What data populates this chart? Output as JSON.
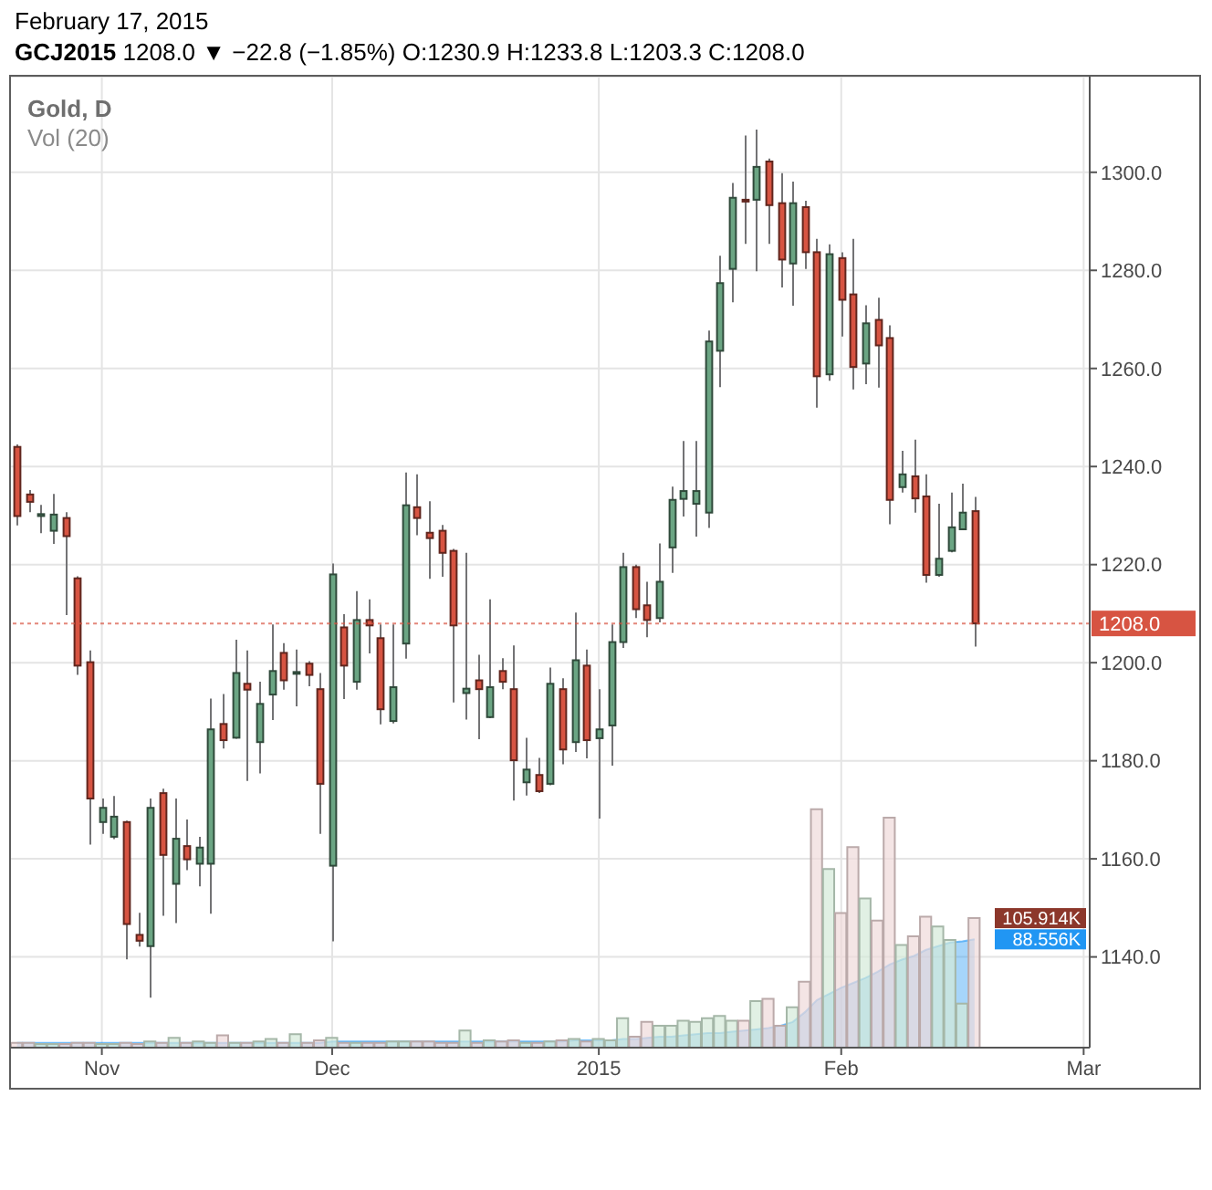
{
  "chart_data": {
    "type": "candlestick",
    "title": "February 17, 2015",
    "subtitle": "GCJ2015 1208.0 ▼ −22.8 (−1.85%) O:1230.9 H:1233.8 L:1203.3 C:1208.0",
    "annotations": [
      "Gold, D",
      "Vol (20)"
    ],
    "categories": [
      null,
      null,
      null,
      null,
      null,
      null,
      null,
      "Nov",
      null,
      null,
      null,
      null,
      null,
      null,
      null,
      null,
      null,
      null,
      null,
      null,
      null,
      null,
      null,
      null,
      null,
      null,
      "Dec",
      null,
      null,
      null,
      null,
      null,
      null,
      null,
      null,
      null,
      null,
      null,
      null,
      null,
      null,
      null,
      null,
      null,
      null,
      null,
      null,
      null,
      "2015",
      null,
      null,
      null,
      null,
      null,
      null,
      null,
      null,
      null,
      null,
      null,
      null,
      null,
      null,
      null,
      null,
      null,
      null,
      null,
      "Feb",
      null,
      null,
      null,
      null,
      null,
      null,
      null,
      null,
      null,
      null,
      null,
      null,
      null,
      null,
      null,
      null,
      null,
      null,
      null,
      "Mar"
    ],
    "series": [
      {
        "ohlc": [
          [
            1244.0,
            1244.5,
            1228.0,
            1229.9
          ],
          [
            1234.3,
            1235.2,
            1230.7,
            1232.8
          ],
          [
            1229.9,
            1232.2,
            1226.4,
            1230.3
          ],
          [
            1226.9,
            1234.4,
            1224.2,
            1230.2
          ],
          [
            1229.5,
            1230.7,
            1209.7,
            1225.8
          ],
          [
            1217.2,
            1217.6,
            1197.5,
            1199.4
          ],
          [
            1200.1,
            1202.5,
            1162.9,
            1172.3
          ],
          [
            1167.5,
            1172.3,
            1165.1,
            1170.4
          ],
          [
            1164.5,
            1172.8,
            1164.0,
            1168.6
          ],
          [
            1167.5,
            1167.8,
            1139.5,
            1146.7
          ],
          [
            1144.5,
            1149.0,
            1142.1,
            1143.3
          ],
          [
            1142.2,
            1172.3,
            1131.7,
            1170.4
          ],
          [
            1173.4,
            1174.3,
            1148.4,
            1160.8
          ],
          [
            1154.9,
            1172.3,
            1146.9,
            1164.1
          ],
          [
            1162.6,
            1168.0,
            1157.7,
            1159.9
          ],
          [
            1159.0,
            1164.5,
            1154.4,
            1162.3
          ],
          [
            1159.0,
            1192.7,
            1148.8,
            1186.4
          ],
          [
            1187.5,
            1193.6,
            1182.5,
            1184.2
          ],
          [
            1184.7,
            1204.7,
            1184.5,
            1197.9
          ],
          [
            1195.7,
            1202.5,
            1175.9,
            1194.5
          ],
          [
            1183.8,
            1196.1,
            1177.4,
            1191.6
          ],
          [
            1193.5,
            1207.8,
            1188.3,
            1198.3
          ],
          [
            1202.0,
            1204.0,
            1194.5,
            1196.4
          ],
          [
            1197.9,
            1202.7,
            1191.1,
            1198.1
          ],
          [
            1199.8,
            1200.3,
            1195.2,
            1197.5
          ],
          [
            1194.6,
            1197.9,
            1165.1,
            1175.3
          ],
          [
            1158.6,
            1220.2,
            1143.2,
            1218.0
          ],
          [
            1207.2,
            1209.9,
            1192.6,
            1199.4
          ],
          [
            1196.1,
            1214.6,
            1194.5,
            1208.7
          ],
          [
            1208.7,
            1212.9,
            1201.9,
            1207.6
          ],
          [
            1205.0,
            1207.8,
            1187.4,
            1190.5
          ],
          [
            1188.1,
            1207.8,
            1187.6,
            1195.0
          ],
          [
            1203.9,
            1238.8,
            1200.8,
            1232.1
          ],
          [
            1231.7,
            1238.4,
            1226.0,
            1229.5
          ],
          [
            1226.5,
            1232.9,
            1217.1,
            1225.4
          ],
          [
            1226.9,
            1228.1,
            1217.5,
            1222.4
          ],
          [
            1222.8,
            1223.2,
            1191.9,
            1207.6
          ],
          [
            1193.8,
            1222.4,
            1188.4,
            1194.7
          ],
          [
            1196.4,
            1201.6,
            1184.4,
            1194.6
          ],
          [
            1188.9,
            1212.9,
            1188.7,
            1195.0
          ],
          [
            1198.3,
            1200.9,
            1194.6,
            1196.1
          ],
          [
            1194.6,
            1203.5,
            1171.9,
            1180.1
          ],
          [
            1175.6,
            1184.7,
            1172.9,
            1178.2
          ],
          [
            1177.1,
            1180.6,
            1173.4,
            1173.8
          ],
          [
            1175.3,
            1199.0,
            1175.0,
            1195.7
          ],
          [
            1194.6,
            1196.8,
            1179.3,
            1182.3
          ],
          [
            1183.8,
            1210.2,
            1181.8,
            1200.5
          ],
          [
            1199.4,
            1202.7,
            1180.5,
            1184.2
          ],
          [
            1184.6,
            1194.6,
            1168.2,
            1186.4
          ],
          [
            1187.2,
            1207.8,
            1179.0,
            1204.2
          ],
          [
            1204.2,
            1222.4,
            1203.0,
            1219.5
          ],
          [
            1219.5,
            1220.0,
            1209.1,
            1210.9
          ],
          [
            1211.7,
            1216.5,
            1205.2,
            1208.7
          ],
          [
            1209.1,
            1224.3,
            1208.2,
            1216.5
          ],
          [
            1223.5,
            1235.9,
            1218.3,
            1233.2
          ],
          [
            1233.4,
            1245.2,
            1229.8,
            1235.0
          ],
          [
            1232.4,
            1245.2,
            1225.7,
            1235.0
          ],
          [
            1230.6,
            1267.7,
            1227.5,
            1265.5
          ],
          [
            1263.6,
            1283.0,
            1256.2,
            1277.4
          ],
          [
            1280.3,
            1297.8,
            1273.5,
            1294.8
          ],
          [
            1294.4,
            1307.5,
            1285.4,
            1294.2
          ],
          [
            1294.4,
            1308.7,
            1279.8,
            1301.1
          ],
          [
            1302.2,
            1302.8,
            1285.4,
            1293.3
          ],
          [
            1293.7,
            1299.8,
            1276.5,
            1282.2
          ],
          [
            1281.4,
            1298.1,
            1272.8,
            1293.7
          ],
          [
            1292.9,
            1294.2,
            1280.3,
            1283.7
          ],
          [
            1283.7,
            1286.4,
            1252.0,
            1258.4
          ],
          [
            1258.8,
            1285.3,
            1257.5,
            1283.3
          ],
          [
            1282.5,
            1283.7,
            1266.5,
            1274.0
          ],
          [
            1275.1,
            1286.4,
            1255.7,
            1260.3
          ],
          [
            1261.0,
            1272.9,
            1256.8,
            1269.2
          ],
          [
            1269.9,
            1274.4,
            1256.1,
            1264.7
          ],
          [
            1266.2,
            1268.8,
            1228.2,
            1233.2
          ],
          [
            1235.8,
            1243.2,
            1234.7,
            1238.4
          ],
          [
            1238.0,
            1245.5,
            1230.6,
            1233.5
          ],
          [
            1233.9,
            1238.4,
            1216.3,
            1217.9
          ],
          [
            1217.9,
            1232.4,
            1217.5,
            1221.2
          ],
          [
            1222.8,
            1234.7,
            1222.5,
            1227.6
          ],
          [
            1227.2,
            1236.5,
            1227.0,
            1230.6
          ],
          [
            1230.9,
            1233.8,
            1203.3,
            1208.0
          ],
          null,
          null,
          null,
          null,
          null,
          null,
          null,
          null,
          null
        ],
        "colors": [
          "#d75442",
          "#d75442",
          "#6ba583",
          "#6ba583",
          "#d75442",
          "#d75442",
          "#d75442",
          "#6ba583",
          "#6ba583",
          "#d75442",
          "#d75442",
          "#6ba583",
          "#d75442",
          "#6ba583",
          "#d75442",
          "#6ba583",
          "#6ba583",
          "#d75442",
          "#6ba583",
          "#d75442",
          "#6ba583",
          "#6ba583",
          "#d75442",
          "#6ba583",
          "#d75442",
          "#d75442",
          "#6ba583",
          "#d75442",
          "#6ba583",
          "#d75442",
          "#d75442",
          "#6ba583",
          "#6ba583",
          "#d75442",
          "#d75442",
          "#d75442",
          "#d75442",
          "#6ba583",
          "#d75442",
          "#6ba583",
          "#d75442",
          "#d75442",
          "#6ba583",
          "#d75442",
          "#6ba583",
          "#d75442",
          "#6ba583",
          "#d75442",
          "#6ba583",
          "#6ba583",
          "#6ba583",
          "#d75442",
          "#d75442",
          "#6ba583",
          "#6ba583",
          "#6ba583",
          "#6ba583",
          "#6ba583",
          "#6ba583",
          "#6ba583",
          "#d75442",
          "#6ba583",
          "#d75442",
          "#d75442",
          "#6ba583",
          "#d75442",
          "#d75442",
          "#6ba583",
          "#d75442",
          "#d75442",
          "#6ba583",
          "#d75442",
          "#d75442",
          "#6ba583",
          "#d75442",
          "#d75442",
          "#6ba583",
          "#6ba583",
          "#6ba583",
          "#d75442",
          null,
          null,
          null,
          null,
          null,
          null,
          null,
          null,
          null
        ]
      },
      {
        "type": "bar",
        "axis": "y2",
        "values": [
          4,
          4,
          3,
          3,
          3,
          4,
          4,
          3,
          3,
          4,
          3,
          5,
          4,
          8,
          4,
          5,
          4,
          10,
          4,
          4,
          5,
          7,
          4,
          11,
          4,
          6,
          8,
          4,
          4,
          4,
          4,
          5,
          5,
          5,
          5,
          4,
          4,
          14,
          4,
          6,
          5,
          6,
          4,
          4,
          5,
          6,
          7,
          5,
          7,
          6,
          24,
          9,
          21,
          18,
          18,
          22,
          21,
          24,
          26,
          22,
          22,
          38,
          40,
          18,
          33,
          54,
          195,
          146,
          110,
          164,
          122,
          104,
          188,
          84,
          91,
          107,
          99,
          88,
          36,
          105.914,
          null,
          null,
          null,
          null,
          null,
          null,
          null,
          null,
          null
        ],
        "colors": [
          "#f0dada",
          "#f0dada",
          "#d4ead8",
          "#d4ead8",
          "#f0dada",
          "#f0dada",
          "#f0dada",
          "#d4ead8",
          "#d4ead8",
          "#f0dada",
          "#f0dada",
          "#d4ead8",
          "#f0dada",
          "#d4ead8",
          "#f0dada",
          "#d4ead8",
          "#d4ead8",
          "#f0dada",
          "#d4ead8",
          "#f0dada",
          "#d4ead8",
          "#d4ead8",
          "#f0dada",
          "#d4ead8",
          "#f0dada",
          "#f0dada",
          "#d4ead8",
          "#f0dada",
          "#d4ead8",
          "#f0dada",
          "#f0dada",
          "#d4ead8",
          "#d4ead8",
          "#f0dada",
          "#f0dada",
          "#f0dada",
          "#f0dada",
          "#d4ead8",
          "#f0dada",
          "#d4ead8",
          "#f0dada",
          "#f0dada",
          "#d4ead8",
          "#f0dada",
          "#d4ead8",
          "#f0dada",
          "#d4ead8",
          "#f0dada",
          "#d4ead8",
          "#d4ead8",
          "#d4ead8",
          "#f0dada",
          "#f0dada",
          "#d4ead8",
          "#d4ead8",
          "#d4ead8",
          "#d4ead8",
          "#d4ead8",
          "#d4ead8",
          "#d4ead8",
          "#f0dada",
          "#d4ead8",
          "#f0dada",
          "#f0dada",
          "#d4ead8",
          "#f0dada",
          "#f0dada",
          "#d4ead8",
          "#f0dada",
          "#f0dada",
          "#d4ead8",
          "#f0dada",
          "#f0dada",
          "#d4ead8",
          "#f0dada",
          "#f0dada",
          "#d4ead8",
          "#d4ead8",
          "#d4ead8",
          "#f0dada",
          null,
          null,
          null,
          null,
          null,
          null,
          null,
          null,
          null
        ]
      },
      {
        "type": "area",
        "axis": "y2",
        "color": "#2196f3",
        "values": [
          4,
          4,
          4,
          4,
          4,
          4,
          4,
          4,
          4,
          4,
          4,
          4,
          4,
          4,
          4,
          4,
          4,
          4,
          4,
          4,
          4,
          4,
          4,
          4,
          4,
          4,
          5,
          5,
          5,
          5,
          5,
          5,
          5,
          5,
          5,
          5,
          5,
          5,
          5,
          5,
          5,
          5,
          5,
          5,
          5,
          5,
          6,
          6,
          6,
          6,
          7,
          7,
          8,
          9,
          9,
          10,
          11,
          12,
          12,
          13,
          14,
          15,
          16,
          18,
          21,
          29,
          39,
          44,
          49,
          53,
          57,
          62,
          68,
          72,
          75,
          80,
          83,
          86,
          87,
          88.556,
          null,
          null,
          null,
          null,
          null,
          null,
          null,
          null,
          null
        ]
      }
    ],
    "ylim": [
      1121.5,
      1319.5
    ],
    "yticks": [
      {
        "value": 1140,
        "label": "1140.0"
      },
      {
        "value": 1160,
        "label": "1160.0"
      },
      {
        "value": 1180,
        "label": "1180.0"
      },
      {
        "value": 1200,
        "label": "1200.0"
      },
      {
        "value": 1220,
        "label": "1220.0"
      },
      {
        "value": 1240,
        "label": "1240.0"
      },
      {
        "value": 1260,
        "label": "1260.0"
      },
      {
        "value": 1280,
        "label": "1280.0"
      },
      {
        "value": 1300,
        "label": "1300.0"
      }
    ],
    "y2lim": [
      0,
      794
    ],
    "y2ticks": [
      {
        "value": 88.556,
        "label": "88.556K"
      },
      {
        "value": 105.914,
        "label": "105.914K"
      }
    ],
    "ref_lines": [
      {
        "axis": "y",
        "value": 1208.0,
        "label": "1208.0",
        "color": "#d75442",
        "line_style": "dotted"
      }
    ],
    "grid": true
  }
}
